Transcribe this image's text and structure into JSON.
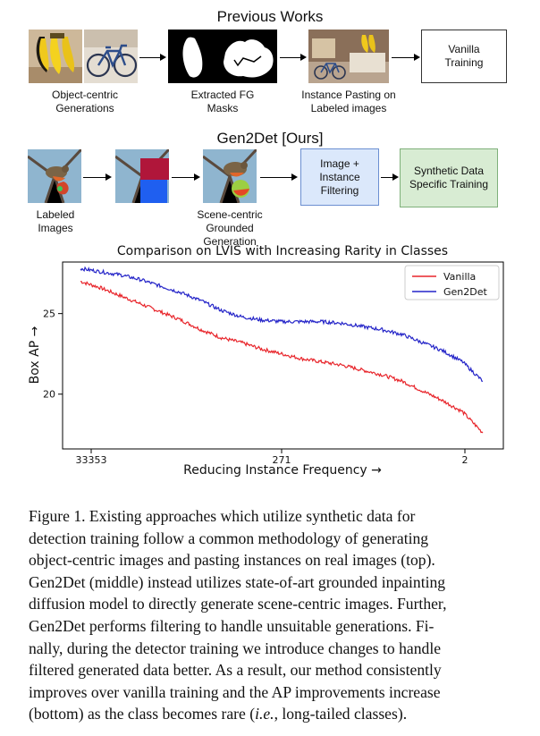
{
  "top": {
    "title": "Previous Works",
    "captions": [
      "Object-centric Generations",
      "Extracted FG Masks",
      "Instance Pasting on Labeled images"
    ],
    "box_label": "Vanilla Training"
  },
  "middle": {
    "title": "Gen2Det [Ours]",
    "captions": [
      "Labeled Images",
      "Scene-centric Grounded Generation"
    ],
    "filter_label": "Image + Instance Filtering",
    "synthetic_label": "Synthetic Data Specific Training",
    "colors": {
      "filter_fill": "#dbe8fb",
      "filter_border": "#6b8fd1",
      "synthetic_fill": "#d8ecd3",
      "synthetic_border": "#7fb07a",
      "mask_red": "#b0163a",
      "mask_blue": "#1f5ff0"
    }
  },
  "chart_data": {
    "type": "line",
    "title": "Comparison on LVIS with Increasing Rarity in Classes",
    "xlabel": "Reducing Instance Frequency →",
    "ylabel": "Box AP →",
    "xticks": [
      "33353",
      "271",
      "2"
    ],
    "yticks": [
      20,
      25
    ],
    "xlim": [
      0,
      100
    ],
    "ylim": [
      16.6,
      28.2
    ],
    "legend_position": "top-right",
    "series": [
      {
        "name": "Vanilla",
        "color": "#e8252b",
        "x": [
          0,
          5,
          10,
          15,
          20,
          25,
          30,
          35,
          40,
          45,
          50,
          55,
          60,
          65,
          70,
          75,
          80,
          85,
          90,
          95,
          100
        ],
        "values": [
          27.0,
          26.6,
          26.1,
          25.6,
          25.1,
          24.6,
          24.0,
          23.5,
          23.2,
          22.8,
          22.5,
          22.2,
          22.0,
          21.8,
          21.5,
          21.2,
          20.8,
          20.2,
          19.6,
          18.9,
          17.6
        ]
      },
      {
        "name": "Gen2Det",
        "color": "#2424c8",
        "x": [
          0,
          5,
          10,
          15,
          20,
          25,
          30,
          35,
          40,
          45,
          50,
          55,
          60,
          65,
          70,
          75,
          80,
          85,
          90,
          95,
          100
        ],
        "values": [
          27.8,
          27.6,
          27.4,
          27.1,
          26.7,
          26.3,
          25.8,
          25.2,
          24.8,
          24.6,
          24.5,
          24.5,
          24.5,
          24.4,
          24.2,
          24.0,
          23.7,
          23.2,
          22.7,
          22.0,
          20.8
        ]
      }
    ]
  },
  "caption": {
    "lines": [
      "Figure 1.  Existing approaches which utilize synthetic data for",
      "detection training follow a common methodology of generating",
      "object-centric images and pasting instances on real images (top).",
      "Gen2Det (middle) instead utilizes state-of-art grounded inpainting",
      "diffusion model to directly generate scene-centric images. Further,",
      "Gen2Det performs filtering to handle unsuitable generations.  Fi-",
      "nally, during the detector training we introduce changes to handle",
      "filtered generated data better. As a result, our method consistently",
      "improves over vanilla training and the AP improvements increase"
    ],
    "last_line_pre": "(bottom) as the class becomes rare (",
    "last_line_italic": "i.e.",
    "last_line_post": ", long-tailed classes)."
  }
}
